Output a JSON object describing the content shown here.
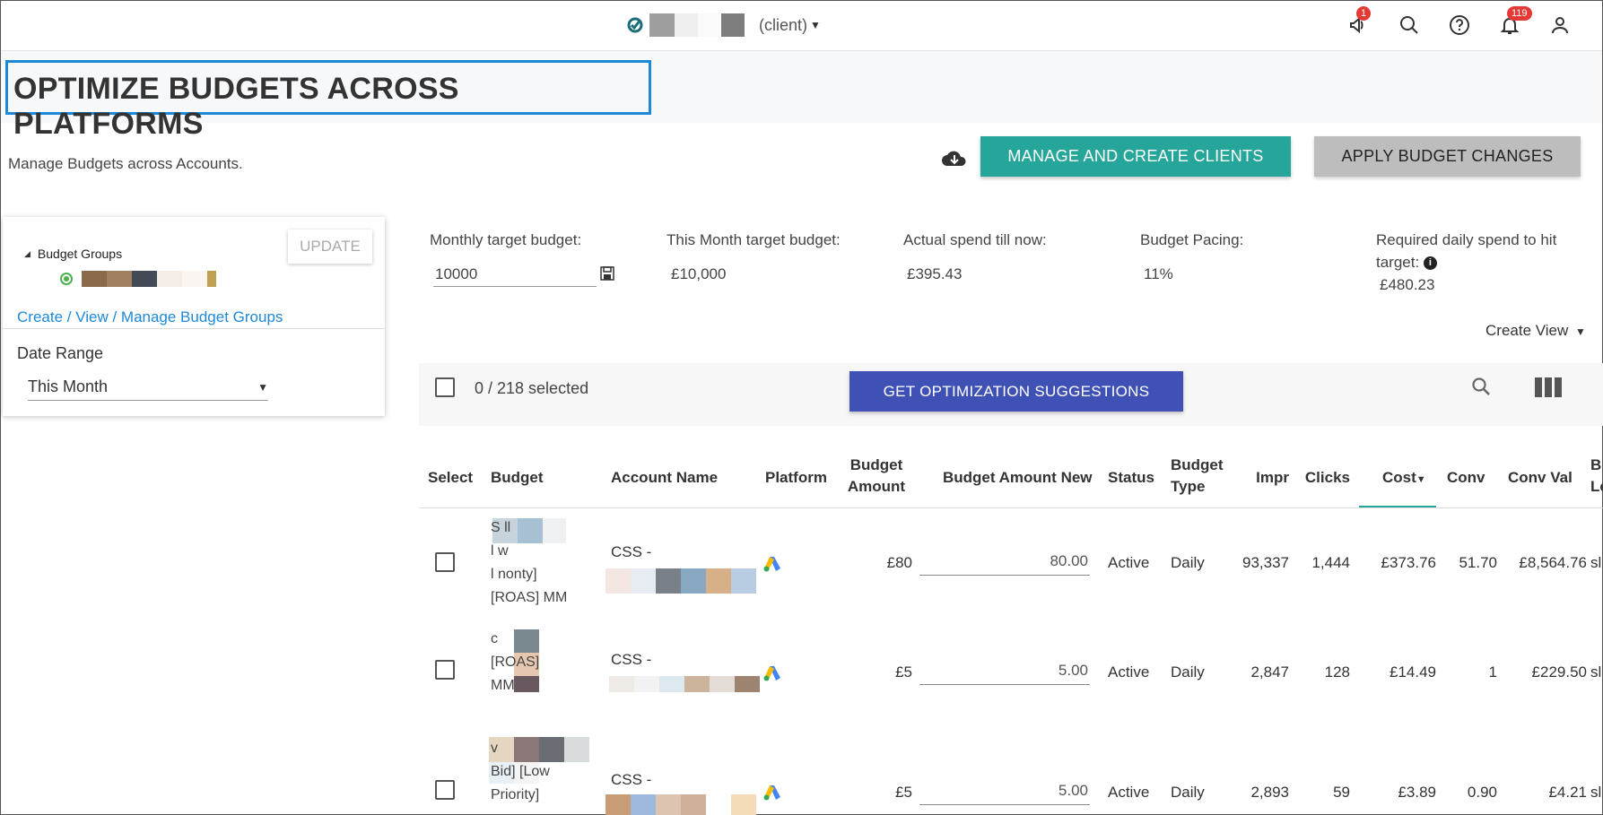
{
  "topbar": {
    "client_label": "(client)",
    "notifications_feature_count": "1",
    "notifications_bell_count": "119",
    "icons": [
      "megaphone-icon",
      "search-icon",
      "help-icon",
      "bell-icon",
      "user-icon"
    ]
  },
  "header": {
    "title": "OPTIMIZE BUDGETS ACROSS PLATFORMS",
    "subtitle": "Manage Budgets across Accounts.",
    "manage_clients_label": "MANAGE AND CREATE CLIENTS",
    "apply_changes_label": "APPLY BUDGET CHANGES"
  },
  "left_panel": {
    "tree_root": "Budget Groups",
    "update_label": "UPDATE",
    "manage_link": "Create / View / Manage Budget Groups",
    "date_range_label": "Date Range",
    "date_range_value": "This Month"
  },
  "stats": {
    "monthly_target_label": "Monthly target budget:",
    "monthly_target_value": "10000",
    "this_month_label": "This Month target budget:",
    "this_month_value": "£10,000",
    "actual_spend_label": "Actual spend till now:",
    "actual_spend_value": "£395.43",
    "pacing_label": "Budget Pacing:",
    "pacing_value": "11%",
    "required_label_1": "Required daily spend to hit",
    "required_label_2": "target:",
    "required_value": "£480.23",
    "create_view_label": "Create View"
  },
  "toolbar": {
    "selected_count": "0 / 218 selected",
    "optimize_label": "GET OPTIMIZATION SUGGESTIONS"
  },
  "table": {
    "headers": {
      "select": "Select",
      "budget": "Budget",
      "account": "Account Name",
      "platform": "Platform",
      "amount_1": "Budget",
      "amount_2": "Amount",
      "amount_new": "Budget Amount New",
      "status": "Status",
      "type_1": "Budget",
      "type_2": "Type",
      "impr": "Impr",
      "clicks": "Clicks",
      "cost": "Cost",
      "conv": "Conv",
      "conv_val": "Conv Val",
      "last_1": "B",
      "last_2": "Le"
    },
    "rows": [
      {
        "budget_lines": [
          "S           ll",
          "l             w",
          "l  nonty]",
          "[ROAS] MM"
        ],
        "account_prefix": "CSS -",
        "amount": "£80",
        "amount_new": "80.00",
        "status": "Active",
        "type": "Daily",
        "impr": "93,337",
        "clicks": "1,444",
        "cost": "£373.76",
        "conv": "51.70",
        "conv_val": "£8,564.76",
        "last": "sl"
      },
      {
        "budget_lines": [
          "",
          "          c",
          "        [ROAS]",
          "MM"
        ],
        "account_prefix": "CSS -",
        "amount": "£5",
        "amount_new": "5.00",
        "status": "Active",
        "type": "Daily",
        "impr": "2,847",
        "clicks": "128",
        "cost": "£14.49",
        "conv": "1",
        "conv_val": "£229.50",
        "last": "sl"
      },
      {
        "budget_lines": [
          "",
          "             v",
          "Bid] [Low",
          "Priority]"
        ],
        "account_prefix": "CSS -",
        "amount": "£5",
        "amount_new": "5.00",
        "status": "Active",
        "type": "Daily",
        "impr": "2,893",
        "clicks": "59",
        "cost": "£3.89",
        "conv": "0.90",
        "conv_val": "£4.21",
        "last": "sl"
      }
    ]
  }
}
